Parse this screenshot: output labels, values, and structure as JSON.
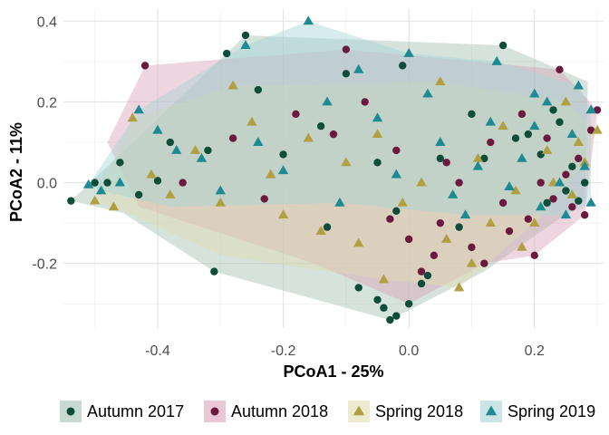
{
  "chart_data": {
    "type": "scatter",
    "title": "",
    "xlabel": "PCoA1 - 25%",
    "ylabel": "PCoA2 - 11%",
    "xlim": [
      -0.55,
      0.31
    ],
    "ylim": [
      -0.36,
      0.43
    ],
    "x_ticks": [
      -0.4,
      -0.2,
      0.0,
      0.2
    ],
    "x_tick_labels": [
      "-0.4",
      "-0.2",
      "0.0",
      "0.2"
    ],
    "y_ticks": [
      -0.2,
      0.0,
      0.2,
      0.4
    ],
    "y_tick_labels": [
      "-0.2",
      "0.0",
      "0.2",
      "0.4"
    ],
    "grid": true,
    "legend_position": "bottom",
    "series": [
      {
        "name": "Autumn 2017",
        "marker": "circle",
        "color": "#0e4d3a",
        "hull": [
          [
            -0.538,
            -0.045
          ],
          [
            -0.26,
            0.365
          ],
          [
            0.15,
            0.34
          ],
          [
            0.285,
            0.25
          ],
          [
            0.28,
            -0.045
          ],
          [
            0.12,
            -0.22
          ],
          [
            -0.03,
            -0.34
          ],
          [
            -0.31,
            -0.22
          ],
          [
            -0.455,
            -0.075
          ]
        ],
        "points": [
          [
            -0.538,
            -0.045
          ],
          [
            -0.5,
            0.0
          ],
          [
            -0.48,
            0.0
          ],
          [
            -0.46,
            0.05
          ],
          [
            -0.43,
            -0.03
          ],
          [
            -0.4,
            0.005
          ],
          [
            -0.38,
            0.1
          ],
          [
            -0.32,
            0.08
          ],
          [
            -0.31,
            -0.22
          ],
          [
            -0.29,
            0.32
          ],
          [
            -0.26,
            0.365
          ],
          [
            -0.24,
            0.23
          ],
          [
            -0.2,
            0.07
          ],
          [
            -0.14,
            0.14
          ],
          [
            -0.13,
            -0.11
          ],
          [
            -0.1,
            0.27
          ],
          [
            -0.05,
            0.05
          ],
          [
            -0.01,
            0.29
          ],
          [
            -0.02,
            -0.07
          ],
          [
            -0.08,
            -0.26
          ],
          [
            -0.05,
            -0.29
          ],
          [
            -0.04,
            -0.31
          ],
          [
            -0.03,
            -0.34
          ],
          [
            -0.02,
            -0.33
          ],
          [
            0.0,
            -0.3
          ],
          [
            0.02,
            -0.25
          ],
          [
            0.03,
            -0.23
          ],
          [
            0.05,
            0.06
          ],
          [
            0.08,
            -0.11
          ],
          [
            0.1,
            0.17
          ],
          [
            0.12,
            0.06
          ],
          [
            0.15,
            0.34
          ],
          [
            0.17,
            0.11
          ],
          [
            0.19,
            0.12
          ],
          [
            0.21,
            0.07
          ],
          [
            0.23,
            0.18
          ],
          [
            0.24,
            0.15
          ],
          [
            0.26,
            0.04
          ],
          [
            0.27,
            -0.045
          ],
          [
            0.25,
            -0.02
          ],
          [
            0.28,
            0.0
          ],
          [
            0.22,
            -0.05
          ]
        ]
      },
      {
        "name": "Autumn 2018",
        "marker": "circle",
        "color": "#6b1a3f",
        "hull": [
          [
            -0.42,
            0.29
          ],
          [
            -0.1,
            0.33
          ],
          [
            0.24,
            0.28
          ],
          [
            0.3,
            0.18
          ],
          [
            0.28,
            -0.08
          ],
          [
            0.2,
            -0.18
          ],
          [
            0.12,
            -0.2
          ],
          [
            0.0,
            -0.3
          ],
          [
            -0.15,
            -0.2
          ],
          [
            -0.43,
            -0.06
          ],
          [
            -0.48,
            0.1
          ]
        ],
        "points": [
          [
            -0.42,
            0.29
          ],
          [
            -0.36,
            0.0
          ],
          [
            -0.28,
            0.11
          ],
          [
            -0.23,
            -0.04
          ],
          [
            -0.18,
            0.17
          ],
          [
            -0.12,
            0.12
          ],
          [
            -0.1,
            0.33
          ],
          [
            -0.07,
            0.2
          ],
          [
            -0.03,
            -0.09
          ],
          [
            -0.02,
            0.08
          ],
          [
            0.0,
            -0.14
          ],
          [
            0.02,
            -0.22
          ],
          [
            0.04,
            -0.18
          ],
          [
            0.05,
            -0.1
          ],
          [
            0.06,
            0.05
          ],
          [
            0.08,
            0.0
          ],
          [
            0.1,
            -0.16
          ],
          [
            0.12,
            -0.2
          ],
          [
            0.13,
            0.1
          ],
          [
            0.15,
            -0.05
          ],
          [
            0.16,
            -0.12
          ],
          [
            0.18,
            0.17
          ],
          [
            0.2,
            -0.18
          ],
          [
            0.21,
            0.0
          ],
          [
            0.23,
            -0.04
          ],
          [
            0.24,
            0.28
          ],
          [
            0.25,
            0.02
          ],
          [
            0.26,
            -0.06
          ],
          [
            0.27,
            0.06
          ],
          [
            0.28,
            -0.08
          ],
          [
            0.3,
            0.18
          ],
          [
            0.29,
            0.13
          ],
          [
            0.22,
            0.11
          ],
          [
            0.19,
            -0.09
          ]
        ]
      },
      {
        "name": "Spring 2018",
        "marker": "triangle",
        "color": "#b0a041",
        "hull": [
          [
            -0.5,
            -0.045
          ],
          [
            -0.44,
            0.16
          ],
          [
            -0.28,
            0.24
          ],
          [
            0.05,
            0.25
          ],
          [
            0.25,
            0.2
          ],
          [
            0.3,
            0.13
          ],
          [
            0.28,
            0.05
          ],
          [
            0.2,
            -0.1
          ],
          [
            0.08,
            -0.26
          ],
          [
            -0.04,
            -0.24
          ],
          [
            -0.3,
            -0.18
          ],
          [
            -0.47,
            -0.06
          ]
        ],
        "points": [
          [
            -0.5,
            -0.045
          ],
          [
            -0.47,
            -0.06
          ],
          [
            -0.44,
            0.16
          ],
          [
            -0.41,
            0.02
          ],
          [
            -0.38,
            -0.03
          ],
          [
            -0.34,
            0.08
          ],
          [
            -0.3,
            -0.05
          ],
          [
            -0.28,
            0.24
          ],
          [
            -0.25,
            0.15
          ],
          [
            -0.22,
            0.02
          ],
          [
            -0.2,
            -0.08
          ],
          [
            -0.16,
            0.11
          ],
          [
            -0.14,
            -0.12
          ],
          [
            -0.1,
            0.05
          ],
          [
            -0.08,
            -0.15
          ],
          [
            -0.05,
            0.12
          ],
          [
            -0.04,
            -0.24
          ],
          [
            -0.01,
            -0.05
          ],
          [
            0.02,
            0.0
          ],
          [
            0.05,
            0.25
          ],
          [
            0.06,
            -0.14
          ],
          [
            0.08,
            -0.26
          ],
          [
            0.1,
            -0.2
          ],
          [
            0.11,
            0.06
          ],
          [
            0.13,
            -0.1
          ],
          [
            0.15,
            0.14
          ],
          [
            0.17,
            -0.02
          ],
          [
            0.18,
            -0.16
          ],
          [
            0.2,
            -0.1
          ],
          [
            0.22,
            0.08
          ],
          [
            0.23,
            0.0
          ],
          [
            0.25,
            0.2
          ],
          [
            0.26,
            -0.03
          ],
          [
            0.28,
            0.05
          ],
          [
            0.3,
            0.13
          ],
          [
            0.27,
            0.1
          ]
        ]
      },
      {
        "name": "Spring 2019",
        "marker": "triangle",
        "color": "#1e8a91",
        "hull": [
          [
            -0.51,
            -0.005
          ],
          [
            -0.43,
            0.18
          ],
          [
            -0.26,
            0.34
          ],
          [
            -0.16,
            0.4
          ],
          [
            0.0,
            0.32
          ],
          [
            0.14,
            0.3
          ],
          [
            0.27,
            0.24
          ],
          [
            0.29,
            0.18
          ],
          [
            0.29,
            -0.05
          ],
          [
            0.25,
            -0.08
          ],
          [
            0.09,
            -0.08
          ],
          [
            -0.11,
            -0.05
          ],
          [
            -0.38,
            -0.06
          ],
          [
            -0.49,
            -0.02
          ]
        ],
        "points": [
          [
            -0.51,
            -0.005
          ],
          [
            -0.49,
            -0.02
          ],
          [
            -0.46,
            0.0
          ],
          [
            -0.43,
            0.18
          ],
          [
            -0.4,
            0.13
          ],
          [
            -0.37,
            0.08
          ],
          [
            -0.33,
            0.06
          ],
          [
            -0.3,
            -0.02
          ],
          [
            -0.26,
            0.34
          ],
          [
            -0.24,
            0.1
          ],
          [
            -0.2,
            0.03
          ],
          [
            -0.16,
            0.4
          ],
          [
            -0.13,
            0.2
          ],
          [
            -0.11,
            -0.05
          ],
          [
            -0.08,
            0.28
          ],
          [
            -0.05,
            0.16
          ],
          [
            -0.02,
            0.02
          ],
          [
            0.0,
            0.32
          ],
          [
            0.03,
            0.22
          ],
          [
            0.05,
            0.1
          ],
          [
            0.07,
            -0.03
          ],
          [
            0.09,
            -0.08
          ],
          [
            0.11,
            0.04
          ],
          [
            0.13,
            0.15
          ],
          [
            0.14,
            0.3
          ],
          [
            0.16,
            -0.01
          ],
          [
            0.18,
            0.06
          ],
          [
            0.2,
            0.14
          ],
          [
            0.21,
            -0.06
          ],
          [
            0.22,
            0.2
          ],
          [
            0.24,
            0.0
          ],
          [
            0.25,
            -0.08
          ],
          [
            0.26,
            0.12
          ],
          [
            0.27,
            0.24
          ],
          [
            0.28,
            0.04
          ],
          [
            0.29,
            0.18
          ],
          [
            0.29,
            -0.05
          ],
          [
            0.2,
            0.22
          ]
        ]
      }
    ]
  }
}
